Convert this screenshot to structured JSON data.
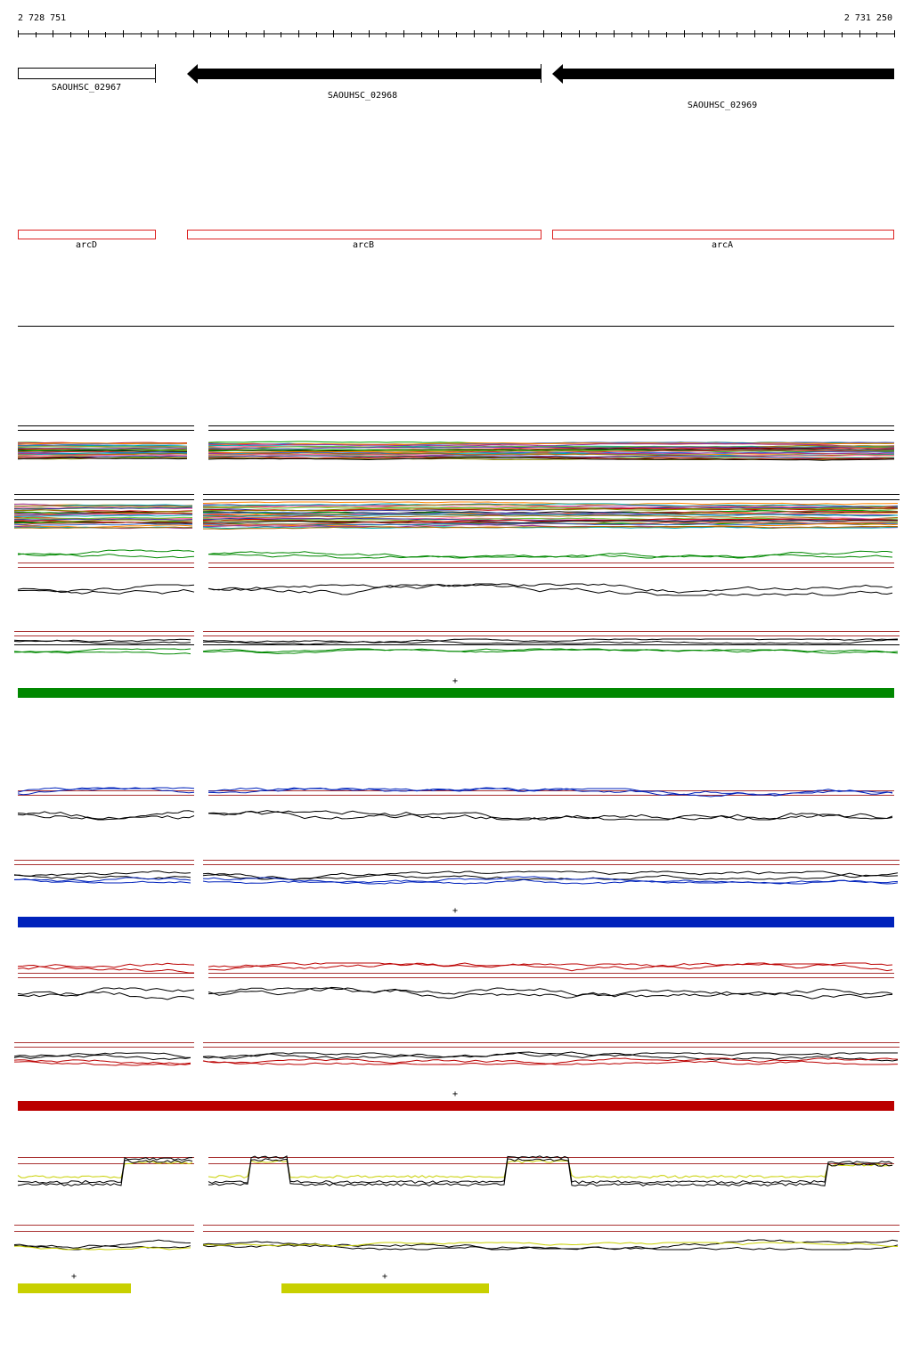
{
  "coordinates": {
    "start_label": "2 728 751",
    "end_label": "2 731 250"
  },
  "genes": [
    {
      "locus": "SAOUHSC_02967",
      "name": "arcD"
    },
    {
      "locus": "SAOUHSC_02968",
      "name": "arcB"
    },
    {
      "locus": "SAOUHSC_02969",
      "name": "arcA"
    }
  ],
  "strand_symbol": "+",
  "colors": {
    "green": "#008800",
    "blue": "#0022bb",
    "red": "#bb0000",
    "yellow": "#c8d000",
    "gene_outline_red": "#dd2222",
    "threshold_line": "#aa3333"
  }
}
